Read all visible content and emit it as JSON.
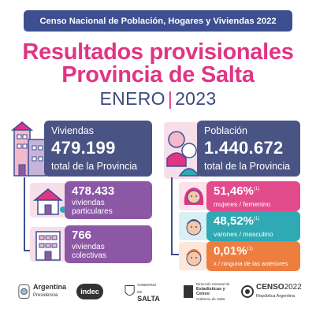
{
  "banner": "Censo Nacional de Población, Hogares y Viviendas 2022",
  "title_line1": "Resultados provisionales",
  "title_line2": "Provincia de Salta",
  "subtitle_month": "ENERO",
  "subtitle_sep": "|",
  "subtitle_year": "2023",
  "viviendas": {
    "label": "Viviendas",
    "value": "479.199",
    "sub": "total de la Provincia",
    "particulares": {
      "value": "478.433",
      "line1": "viviendas",
      "line2": "particulares"
    },
    "colectivas": {
      "value": "766",
      "line1": "viviendas",
      "line2": "colectivas"
    }
  },
  "poblacion": {
    "label": "Población",
    "value": "1.440.672",
    "sub": "total de la Provincia",
    "mujeres": {
      "value": "51,46%",
      "note": "(1)",
      "sub": "mujeres / femenino"
    },
    "varones": {
      "value": "48,52%",
      "note": "(1)",
      "sub": "varones / masculino"
    },
    "ninguna": {
      "value": "0,01%",
      "note": "(1)",
      "sub": "x / ninguna de las anteriores"
    }
  },
  "logos": {
    "argentina": "Argentina",
    "argentina_sub": "Presidencia",
    "indec": "indec",
    "salta_top": "GOBIERNO DE",
    "salta": "SALTA",
    "estadisticas_line1": "Dirección General de",
    "estadisticas_line2": "Estadísticas y",
    "estadisticas_line3": "Censo",
    "estadisticas_line4": "Gobierno de Salta",
    "censo": "CENSO",
    "censo_year": "2022",
    "censo_sub": "República Argentina"
  },
  "colors": {
    "banner": "#3e4f91",
    "title": "#df3584",
    "big_card": "#4a5484",
    "purple": "#8c58a6",
    "pink": "#e24b8c",
    "teal": "#2fa9b3",
    "orange": "#ee7e40"
  }
}
